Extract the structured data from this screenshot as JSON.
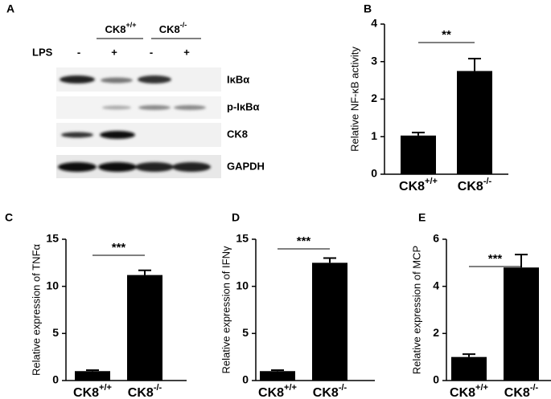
{
  "blot": {
    "panel": "A",
    "groups": [
      {
        "name": "CK8",
        "sup": "+/+"
      },
      {
        "name": "CK8",
        "sup": "-/-"
      }
    ],
    "treatment": "LPS",
    "lanes": [
      "-",
      "+",
      "-",
      "+"
    ],
    "rows": [
      "IκBα",
      "p-IκBα",
      "CK8",
      "GAPDH"
    ]
  },
  "chart_data": [
    {
      "type": "bar",
      "panel": "B",
      "ylabel": "Relative NF-κB activity",
      "categories": [
        {
          "name": "CK8",
          "sup": "+/+"
        },
        {
          "name": "CK8",
          "sup": "-/-"
        }
      ],
      "values": [
        1.03,
        2.75
      ],
      "errors": [
        0.08,
        0.33
      ],
      "color": "#000000",
      "ylim": [
        0,
        4
      ],
      "yticks": [
        0,
        1,
        2,
        3,
        4
      ],
      "annotation": "**"
    },
    {
      "type": "bar",
      "panel": "C",
      "ylabel": "Relative expression of TNFα",
      "categories": [
        {
          "name": "CK8",
          "sup": "+/+"
        },
        {
          "name": "CK8",
          "sup": "-/-"
        }
      ],
      "values": [
        1.0,
        11.2
      ],
      "errors": [
        0.1,
        0.5
      ],
      "color": "#000000",
      "ylim": [
        0,
        15
      ],
      "yticks": [
        0,
        5,
        10,
        15
      ],
      "annotation": "***"
    },
    {
      "type": "bar",
      "panel": "D",
      "ylabel": "Relative expression of IFNγ",
      "categories": [
        {
          "name": "CK8",
          "sup": "+/+"
        },
        {
          "name": "CK8",
          "sup": "-/-"
        }
      ],
      "values": [
        1.0,
        12.5
      ],
      "errors": [
        0.1,
        0.5
      ],
      "color": "#000000",
      "ylim": [
        0,
        15
      ],
      "yticks": [
        0,
        5,
        10,
        15
      ],
      "annotation": "***"
    },
    {
      "type": "bar",
      "panel": "E",
      "ylabel": "Relative expression of MCP",
      "categories": [
        {
          "name": "CK8",
          "sup": "+/+"
        },
        {
          "name": "CK8",
          "sup": "-/-"
        }
      ],
      "values": [
        1.0,
        4.8
      ],
      "errors": [
        0.12,
        0.55
      ],
      "color": "#000000",
      "ylim": [
        0,
        6
      ],
      "yticks": [
        0,
        2,
        4,
        6
      ],
      "annotation": "***"
    }
  ]
}
